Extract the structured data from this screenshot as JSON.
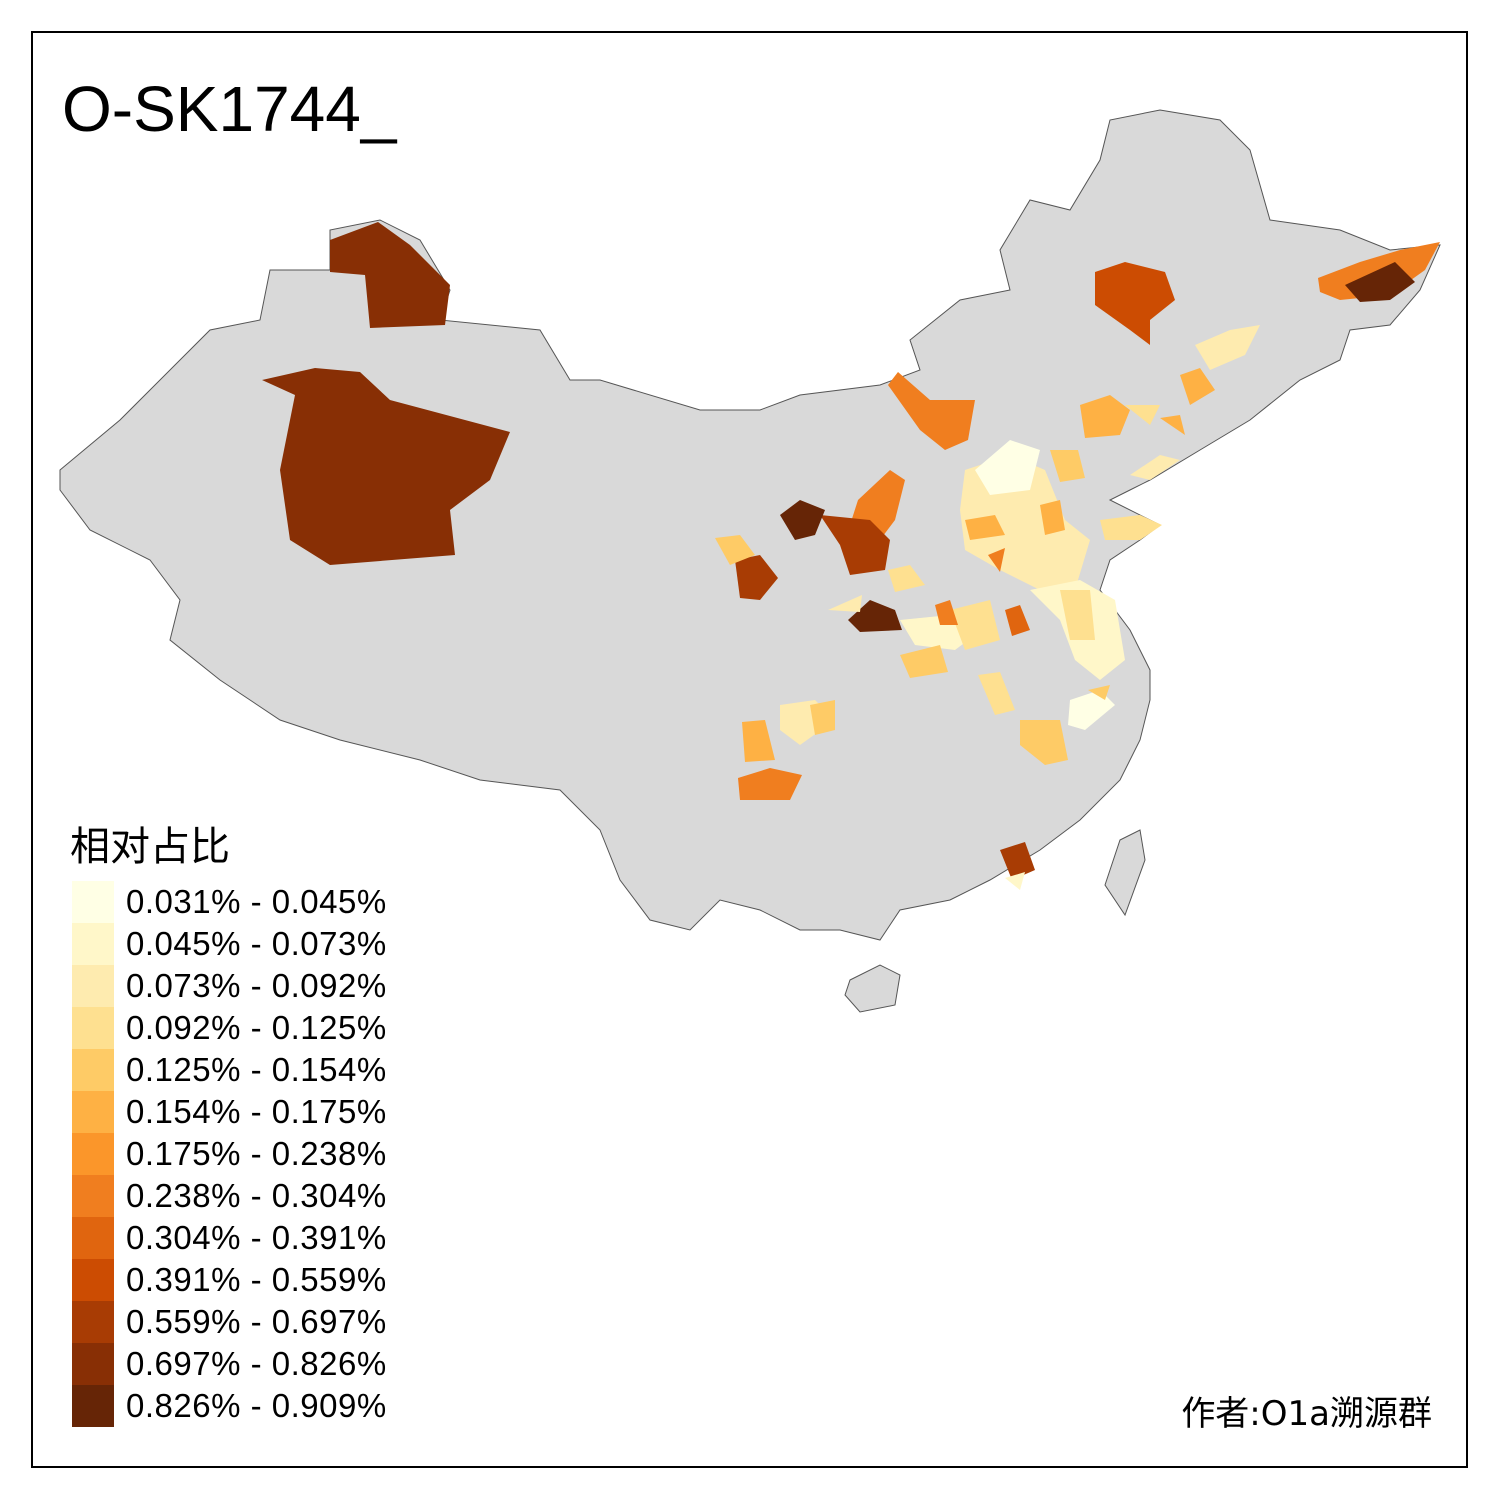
{
  "title": "O-SK1744_",
  "legend": {
    "title": "相对占比",
    "items": [
      {
        "label": "0.031% - 0.045%",
        "color": "#FFFFE5"
      },
      {
        "label": "0.045% - 0.073%",
        "color": "#FFF7C9"
      },
      {
        "label": "0.073% - 0.092%",
        "color": "#FEEBAF"
      },
      {
        "label": "0.092% - 0.125%",
        "color": "#FEE090"
      },
      {
        "label": "0.125% - 0.154%",
        "color": "#FECB66"
      },
      {
        "label": "0.154% - 0.175%",
        "color": "#FEB144"
      },
      {
        "label": "0.175% - 0.238%",
        "color": "#FB962A"
      },
      {
        "label": "0.238% - 0.304%",
        "color": "#F07E1F"
      },
      {
        "label": "0.304% - 0.391%",
        "color": "#E0650F"
      },
      {
        "label": "0.391% - 0.559%",
        "color": "#CC4C02"
      },
      {
        "label": "0.559% - 0.697%",
        "color": "#A83C04"
      },
      {
        "label": "0.697% - 0.826%",
        "color": "#882F05"
      },
      {
        "label": "0.826% - 0.909%",
        "color": "#662506"
      }
    ]
  },
  "author": "作者:O1a溯源群",
  "base_color": "#D9D9D9"
}
